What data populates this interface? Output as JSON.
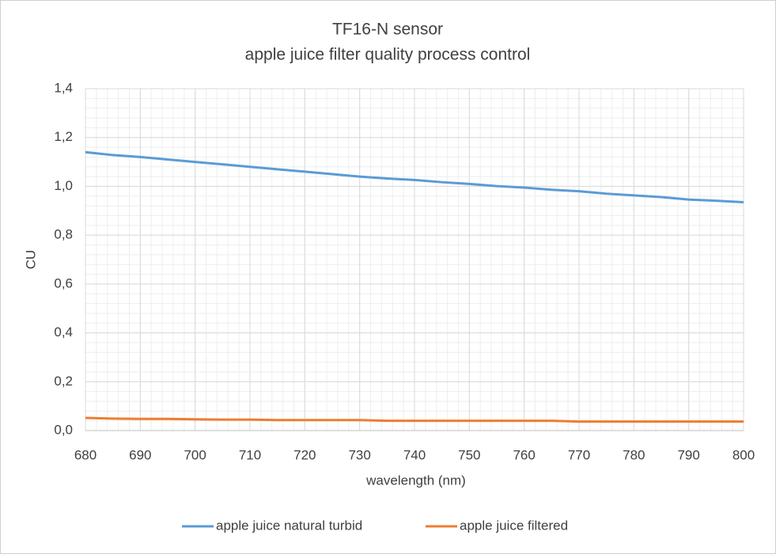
{
  "chart_data": {
    "type": "line",
    "title": [
      "TF16-N sensor",
      "apple juice filter quality process control"
    ],
    "xlabel": "wavelength (nm)",
    "ylabel": "CU",
    "x": [
      680,
      685,
      690,
      695,
      700,
      705,
      710,
      715,
      720,
      725,
      730,
      735,
      740,
      745,
      750,
      755,
      760,
      765,
      770,
      775,
      780,
      785,
      790,
      795,
      800
    ],
    "series": [
      {
        "name": "apple juice natural turbid",
        "color": "#5b9bd5",
        "values": [
          1.14,
          1.128,
          1.12,
          1.11,
          1.1,
          1.09,
          1.08,
          1.07,
          1.06,
          1.05,
          1.04,
          1.032,
          1.026,
          1.017,
          1.01,
          1.001,
          0.995,
          0.986,
          0.98,
          0.97,
          0.963,
          0.956,
          0.946,
          0.941,
          0.935
        ]
      },
      {
        "name": "apple juice filtered",
        "color": "#ed7d31",
        "values": [
          0.052,
          0.049,
          0.048,
          0.048,
          0.046,
          0.045,
          0.045,
          0.043,
          0.043,
          0.043,
          0.043,
          0.04,
          0.04,
          0.04,
          0.04,
          0.04,
          0.04,
          0.04,
          0.037,
          0.037,
          0.037,
          0.037,
          0.037,
          0.037,
          0.037
        ]
      }
    ],
    "xlim": [
      680,
      800
    ],
    "xticks": [
      680,
      690,
      700,
      710,
      720,
      730,
      740,
      750,
      760,
      770,
      780,
      790,
      800
    ],
    "ylim": [
      0,
      1.4
    ],
    "yticks": [
      {
        "value": 0,
        "label": "0,0"
      },
      {
        "value": 0.2,
        "label": "0,2"
      },
      {
        "value": 0.4,
        "label": "0,4"
      },
      {
        "value": 0.6,
        "label": "0,6"
      },
      {
        "value": 0.8,
        "label": "0,8"
      },
      {
        "value": 1.0,
        "label": "1,0"
      },
      {
        "value": 1.2,
        "label": "1,2"
      },
      {
        "value": 1.4,
        "label": "1,4"
      }
    ],
    "grid": true,
    "minor_grid": {
      "x": 2,
      "y": 0.04
    },
    "legend": "bottom"
  }
}
